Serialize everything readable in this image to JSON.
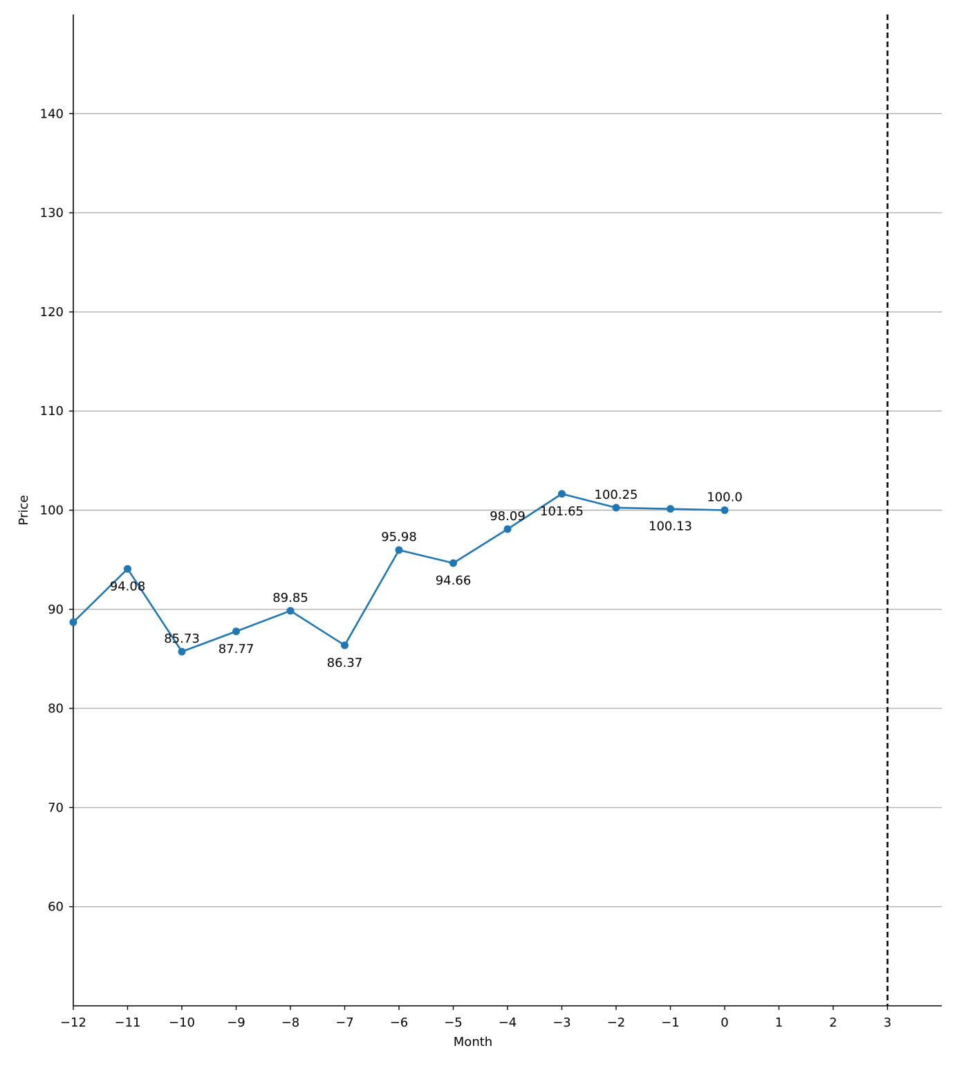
{
  "chart_data": {
    "type": "line",
    "title": "",
    "xlabel": "Month",
    "ylabel": "Price",
    "xlim": [
      -12,
      4
    ],
    "ylim": [
      50,
      150
    ],
    "grid": "y-major",
    "x_ticks": [
      -12,
      -11,
      -10,
      -9,
      -8,
      -7,
      -6,
      -5,
      -4,
      -3,
      -2,
      -1,
      0,
      1,
      2,
      3
    ],
    "x_tick_labels": [
      "−12",
      "−11",
      "−10",
      "−9",
      "−8",
      "−7",
      "−6",
      "−5",
      "−4",
      "−3",
      "−2",
      "−1",
      "0",
      "1",
      "2",
      "3"
    ],
    "y_ticks": [
      60,
      70,
      80,
      90,
      100,
      110,
      120,
      130,
      140
    ],
    "y_tick_labels": [
      "60",
      "70",
      "80",
      "90",
      "100",
      "110",
      "120",
      "130",
      "140"
    ],
    "series": [
      {
        "color": "#1f77b4",
        "marker": "circle",
        "x": [
          -12,
          -11,
          -10,
          -9,
          -8,
          -7,
          -6,
          -5,
          -4,
          -3,
          -2,
          -1,
          0
        ],
        "y": [
          88.7,
          94.08,
          85.73,
          87.77,
          89.85,
          86.37,
          95.98,
          94.66,
          98.09,
          101.65,
          100.25,
          100.13,
          100.0
        ]
      }
    ],
    "data_labels": [
      {
        "x": -11,
        "text": "94.08",
        "position": "below"
      },
      {
        "x": -10,
        "text": "85.73",
        "position": "above"
      },
      {
        "x": -9,
        "text": "87.77",
        "position": "below"
      },
      {
        "x": -8,
        "text": "89.85",
        "position": "above"
      },
      {
        "x": -7,
        "text": "86.37",
        "position": "below"
      },
      {
        "x": -6,
        "text": "95.98",
        "position": "above"
      },
      {
        "x": -5,
        "text": "94.66",
        "position": "below"
      },
      {
        "x": -4,
        "text": "98.09",
        "position": "above"
      },
      {
        "x": -3,
        "text": "101.65",
        "position": "below"
      },
      {
        "x": -2,
        "text": "100.25",
        "position": "above"
      },
      {
        "x": -1,
        "text": "100.13",
        "position": "below"
      },
      {
        "x": 0,
        "text": "100.0",
        "position": "above"
      }
    ],
    "reference_line": {
      "x": 3,
      "style": "dashed",
      "color": "#000000"
    },
    "colors": {
      "axis": "#000000",
      "grid": "#b0b0b0",
      "background": "#ffffff"
    }
  }
}
